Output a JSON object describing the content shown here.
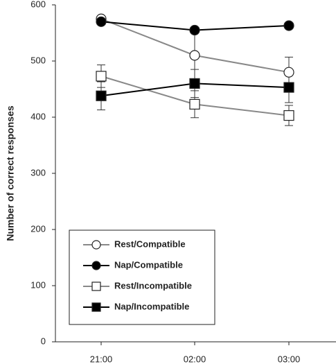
{
  "chart_data": {
    "type": "line",
    "y_label": "Number of correct responses",
    "categories": [
      "21:00",
      "02:00",
      "03:00"
    ],
    "ylim": [
      0,
      600
    ],
    "yticks": [
      0,
      100,
      200,
      300,
      400,
      500,
      600
    ],
    "series": [
      {
        "name": "Rest/Compatible",
        "color": "#888888",
        "marker": "circle",
        "filled": false,
        "values": [
          575,
          510,
          480
        ],
        "errors": [
          5,
          48,
          27
        ]
      },
      {
        "name": "Nap/Compatible",
        "color": "#000000",
        "marker": "circle",
        "filled": true,
        "values": [
          570,
          555,
          563
        ],
        "errors": [
          5,
          5,
          5
        ]
      },
      {
        "name": "Rest/Incompatible",
        "color": "#888888",
        "marker": "square",
        "filled": false,
        "values": [
          473,
          423,
          403
        ],
        "errors": [
          20,
          24,
          18
        ]
      },
      {
        "name": "Nap/Incompatible",
        "color": "#000000",
        "marker": "square",
        "filled": true,
        "values": [
          438,
          460,
          453
        ],
        "errors": [
          25,
          25,
          27
        ]
      }
    ]
  }
}
